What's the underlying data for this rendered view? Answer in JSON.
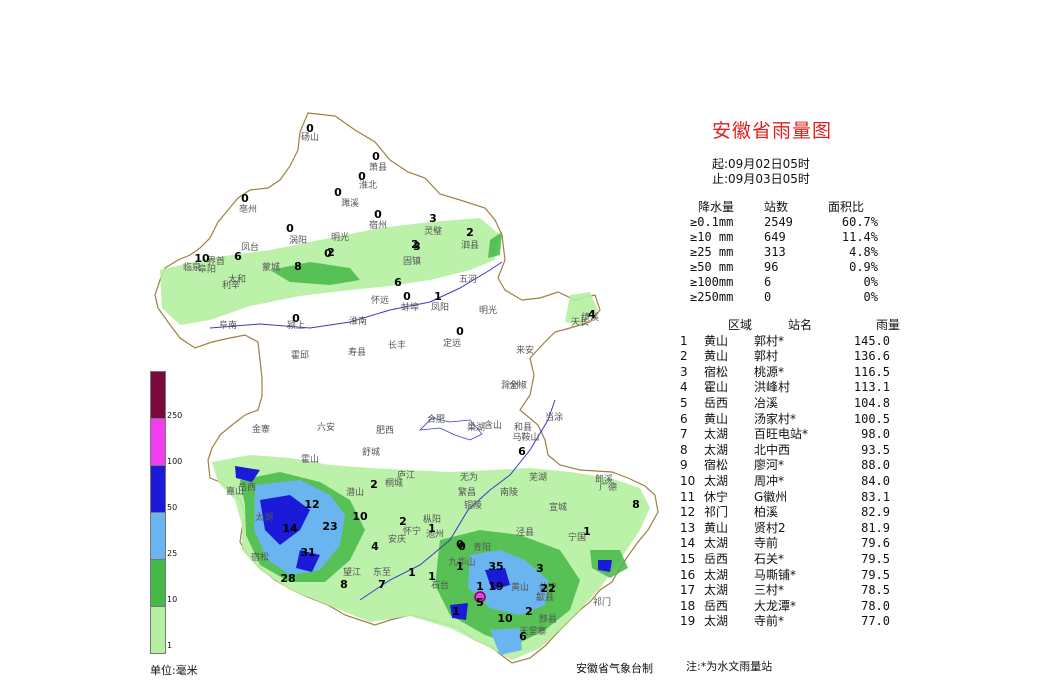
{
  "title": "安徽省雨量图",
  "period": {
    "start": "起:09月02日05时",
    "end": "止:09月03日05时"
  },
  "stats": {
    "headers": [
      "降水量",
      "站数",
      "面积比"
    ],
    "rows": [
      {
        "level": "≥0.1mm",
        "count": "2549",
        "ratio": "60.7%"
      },
      {
        "level": "≥10 mm",
        "count": "649",
        "ratio": "11.4%"
      },
      {
        "level": "≥25 mm",
        "count": "313",
        "ratio": "4.8%"
      },
      {
        "level": "≥50 mm",
        "count": "96",
        "ratio": "0.9%"
      },
      {
        "level": "≥100mm",
        "count": "6",
        "ratio": "0%"
      },
      {
        "level": "≥250mm",
        "count": "0",
        "ratio": "0%"
      }
    ]
  },
  "ranking": {
    "headers": [
      "区域",
      "站名",
      "雨量"
    ],
    "rows": [
      {
        "no": "1",
        "region": "黄山",
        "station": "郭村*",
        "value": "145.0"
      },
      {
        "no": "2",
        "region": "黄山",
        "station": "郭村",
        "value": "136.6"
      },
      {
        "no": "3",
        "region": "宿松",
        "station": "桃源*",
        "value": "116.5"
      },
      {
        "no": "4",
        "region": "霍山",
        "station": "洪峰村",
        "value": "113.1"
      },
      {
        "no": "5",
        "region": "岳西",
        "station": "冶溪",
        "value": "104.8"
      },
      {
        "no": "6",
        "region": "黄山",
        "station": "汤家村*",
        "value": "100.5"
      },
      {
        "no": "7",
        "region": "太湖",
        "station": "百旺电站*",
        "value": "98.0"
      },
      {
        "no": "8",
        "region": "太湖",
        "station": "北中西",
        "value": "93.5"
      },
      {
        "no": "9",
        "region": "宿松",
        "station": "廖河*",
        "value": "88.0"
      },
      {
        "no": "10",
        "region": "太湖",
        "station": "周冲*",
        "value": "84.0"
      },
      {
        "no": "11",
        "region": "休宁",
        "station": "G徽州",
        "value": "83.1"
      },
      {
        "no": "12",
        "region": "祁门",
        "station": "柏溪",
        "value": "82.9"
      },
      {
        "no": "13",
        "region": "黄山",
        "station": "贤村2",
        "value": "81.9"
      },
      {
        "no": "14",
        "region": "太湖",
        "station": "寺前",
        "value": "79.6"
      },
      {
        "no": "15",
        "region": "岳西",
        "station": "石关*",
        "value": "79.5"
      },
      {
        "no": "16",
        "region": "太湖",
        "station": "马嘶铺*",
        "value": "79.5"
      },
      {
        "no": "17",
        "region": "太湖",
        "station": "三村*",
        "value": "78.5"
      },
      {
        "no": "18",
        "region": "岳西",
        "station": "大龙潭*",
        "value": "78.0"
      },
      {
        "no": "19",
        "region": "太湖",
        "station": "寺前*",
        "value": "77.0"
      }
    ]
  },
  "legend": {
    "unit": "单位:毫米",
    "bins": [
      {
        "label": "1",
        "color": "#b5f0a0"
      },
      {
        "label": "10",
        "color": "#46b848"
      },
      {
        "label": "25",
        "color": "#6ab4f0"
      },
      {
        "label": "50",
        "color": "#1a1ad8"
      },
      {
        "label": "100",
        "color": "#f23cf0"
      },
      {
        "label": "250",
        "color": "#7a0a3c"
      }
    ]
  },
  "footer": {
    "issuer": "安徽省气象台制",
    "note": "注:*为水文雨量站"
  },
  "map": {
    "cities": [
      "砀山",
      "萧县",
      "淮北",
      "濉溪",
      "亳州",
      "宿州",
      "涡阳",
      "灵璧",
      "泗县",
      "蒙城",
      "固镇",
      "五河",
      "利辛",
      "太和",
      "阜阳",
      "界首",
      "临泉",
      "阜南",
      "颍上",
      "怀远",
      "蚌埠",
      "凤阳",
      "明光",
      "天长",
      "淮南",
      "寿县",
      "长丰",
      "定远",
      "来安",
      "滁州",
      "全椒",
      "霍邱",
      "六安",
      "金寨",
      "肥西",
      "合肥",
      "舒城",
      "巢湖",
      "含山",
      "和县",
      "马鞍山",
      "当涂",
      "霍山",
      "岳西",
      "庐江",
      "无为",
      "芜湖",
      "宣城",
      "郎溪",
      "广德",
      "太湖",
      "潜山",
      "桐城",
      "枞阳",
      "铜陵",
      "繁昌",
      "南陵",
      "泾县",
      "宁国",
      "宿松",
      "望江",
      "怀宁",
      "安庆",
      "东至",
      "池州",
      "青阳",
      "九华山",
      "石台",
      "黄山",
      "休宁",
      "歙县",
      "祁门",
      "黟县",
      "天堂寨",
      "嘉山",
      "凤台",
      "明光",
      "绩溪"
    ],
    "values": [
      {
        "t": "0"
      },
      {
        "t": "0"
      },
      {
        "t": "0"
      },
      {
        "t": "0"
      },
      {
        "t": "0"
      },
      {
        "t": "0"
      },
      {
        "t": "0"
      },
      {
        "t": "3"
      },
      {
        "t": "2"
      },
      {
        "t": "3"
      },
      {
        "t": "2"
      },
      {
        "t": "0"
      },
      {
        "t": "8"
      },
      {
        "t": "2"
      },
      {
        "t": "10"
      },
      {
        "t": "6"
      },
      {
        "t": "6"
      },
      {
        "t": "0"
      },
      {
        "t": "1"
      },
      {
        "t": "0"
      },
      {
        "t": "4"
      },
      {
        "t": "0"
      },
      {
        "t": "6"
      },
      {
        "t": "8"
      },
      {
        "t": "12"
      },
      {
        "t": "14"
      },
      {
        "t": "23"
      },
      {
        "t": "10"
      },
      {
        "t": "2"
      },
      {
        "t": "4"
      },
      {
        "t": "1"
      },
      {
        "t": "31"
      },
      {
        "t": "28"
      },
      {
        "t": "8"
      },
      {
        "t": "7"
      },
      {
        "t": "2"
      },
      {
        "t": "1"
      },
      {
        "t": "0"
      },
      {
        "t": "1"
      },
      {
        "t": "1"
      },
      {
        "t": "35"
      },
      {
        "t": "19"
      },
      {
        "t": "3"
      },
      {
        "t": "22"
      },
      {
        "t": "5"
      },
      {
        "t": "2"
      },
      {
        "t": "10"
      },
      {
        "t": "1"
      },
      {
        "t": "6"
      },
      {
        "t": "1"
      },
      {
        "t": "1"
      },
      {
        "t": "0"
      }
    ]
  }
}
